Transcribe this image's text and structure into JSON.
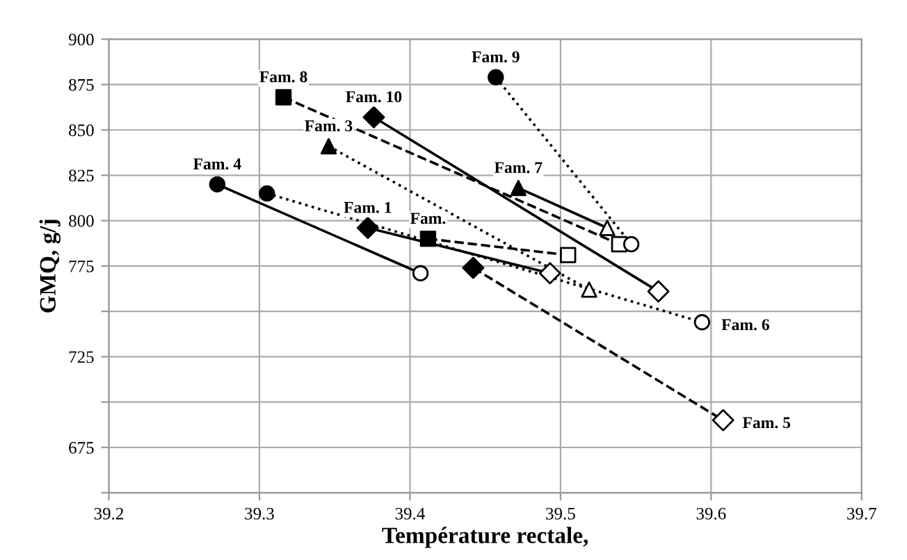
{
  "chart_data": {
    "type": "line",
    "xlabel": "Température rectale,",
    "ylabel": "GMQ, g/j",
    "xlim": [
      39.2,
      39.7
    ],
    "xticks": [
      39.2,
      39.3,
      39.4,
      39.5,
      39.6,
      39.7
    ],
    "ylim": [
      650,
      900
    ],
    "yticks": [
      {
        "value": 650,
        "label": null
      },
      675,
      {
        "value": 700,
        "label": null
      },
      725,
      {
        "value": 750,
        "label": null
      },
      775,
      800,
      825,
      850,
      875,
      900
    ],
    "grid": true,
    "legend": false,
    "series": [
      {
        "color": "#000000",
        "x": [
          39.272,
          39.407
        ],
        "values": [
          820,
          771
        ],
        "marker": "circle",
        "line_style": "solid",
        "colors": [
          "#000000",
          "#ffffff"
        ]
      },
      {
        "color": "#000000",
        "x": [
          39.372,
          39.493
        ],
        "values": [
          796,
          771
        ],
        "marker": "diamond",
        "line_style": "solid",
        "colors": [
          "#000000",
          "#ffffff"
        ]
      },
      {
        "color": "#000000",
        "x": [
          39.305,
          39.594
        ],
        "values": [
          815,
          744
        ],
        "marker": "circle",
        "line_style": "dotted",
        "colors": [
          "#000000",
          "#ffffff"
        ]
      },
      {
        "color": "#000000",
        "x": [
          39.346,
          39.519
        ],
        "values": [
          841,
          762
        ],
        "marker": "triangle",
        "line_style": "dotted",
        "colors": [
          "#000000",
          "#ffffff"
        ]
      },
      {
        "color": "#000000",
        "x": [
          39.316,
          39.539
        ],
        "values": [
          868,
          787
        ],
        "marker": "square",
        "line_style": "dashed",
        "colors": [
          "#000000",
          "#ffffff"
        ]
      },
      {
        "color": "#000000",
        "x": [
          39.376,
          39.565
        ],
        "values": [
          857,
          761
        ],
        "marker": "diamond",
        "line_style": "solid",
        "colors": [
          "#000000",
          "#ffffff"
        ]
      },
      {
        "color": "#000000",
        "x": [
          39.457,
          39.547
        ],
        "values": [
          879,
          787
        ],
        "marker": "circle",
        "line_style": "dotted",
        "colors": [
          "#000000",
          "#ffffff"
        ]
      },
      {
        "color": "#000000",
        "x": [
          39.472,
          39.531
        ],
        "values": [
          818,
          796
        ],
        "marker": "triangle",
        "line_style": "solid",
        "colors": [
          "#000000",
          "#ffffff"
        ]
      },
      {
        "color": "#000000",
        "x": [
          39.412,
          39.505
        ],
        "values": [
          790,
          781
        ],
        "marker": "square",
        "line_style": "dashed",
        "colors": [
          "#000000",
          "#ffffff"
        ]
      },
      {
        "color": "#000000",
        "x": [
          39.442,
          39.608
        ],
        "values": [
          774,
          690
        ],
        "marker": "diamond",
        "line_style": "dashed",
        "colors": [
          "#000000",
          "#ffffff"
        ]
      }
    ],
    "annotations": [
      {
        "text": "Fam. 4",
        "x": 39.272,
        "y": 820
      },
      {
        "text": "Fam. 1",
        "x": 39.372,
        "y": 796
      },
      {
        "text": "Fam. 3",
        "x": 39.346,
        "y": 841
      },
      {
        "text": "Fam. 8",
        "x": 39.316,
        "y": 868
      },
      {
        "text": "Fam. 10",
        "x": 39.376,
        "y": 857
      },
      {
        "text": "Fam. 9",
        "x": 39.457,
        "y": 879
      },
      {
        "text": "Fam. 7",
        "x": 39.472,
        "y": 818
      },
      {
        "text": "Fam.",
        "x": 39.412,
        "y": 790
      },
      {
        "text": "Fam. 6",
        "x": 39.594,
        "y": 744
      },
      {
        "text": "Fam. 5",
        "x": 39.608,
        "y": 690
      }
    ]
  }
}
